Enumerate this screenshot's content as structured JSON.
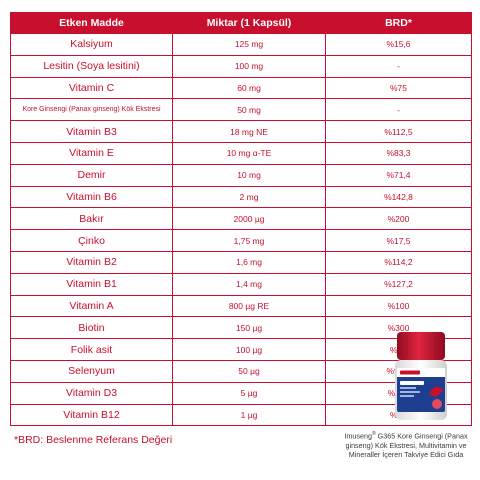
{
  "table": {
    "headers": [
      "Etken Madde",
      "Miktar (1 Kapsül)",
      "BRD*"
    ],
    "rows": [
      {
        "name": "Kalsiyum",
        "amount": "125 mg",
        "brd": "%15,6"
      },
      {
        "name": "Lesitin (Soya lesitini)",
        "amount": "100 mg",
        "brd": "-"
      },
      {
        "name": "Vitamin C",
        "amount": "60 mg",
        "brd": "%75"
      },
      {
        "name": "Kore Ginsengi (Panax ginseng) Kök Ekstresi",
        "amount": "50 mg",
        "brd": "-"
      },
      {
        "name": "Vitamin B3",
        "amount": "18 mg NE",
        "brd": "%112,5"
      },
      {
        "name": "Vitamin E",
        "amount": "10 mg α-TE",
        "brd": "%83,3"
      },
      {
        "name": "Demir",
        "amount": "10 mg",
        "brd": "%71,4"
      },
      {
        "name": "Vitamin B6",
        "amount": "2 mg",
        "brd": "%142,8"
      },
      {
        "name": "Bakır",
        "amount": "2000 µg",
        "brd": "%200"
      },
      {
        "name": "Çinko",
        "amount": "1,75 mg",
        "brd": "%17,5"
      },
      {
        "name": "Vitamin B2",
        "amount": "1,6 mg",
        "brd": "%114,2"
      },
      {
        "name": "Vitamin B1",
        "amount": "1,4 mg",
        "brd": "%127,2"
      },
      {
        "name": "Vitamin A",
        "amount": "800 µg RE",
        "brd": "%100"
      },
      {
        "name": "Biotin",
        "amount": "150 µg",
        "brd": "%300"
      },
      {
        "name": "Folik asit",
        "amount": "100 µg",
        "brd": "%50"
      },
      {
        "name": "Selenyum",
        "amount": "50 µg",
        "brd": "%90,9"
      },
      {
        "name": "Vitamin D3",
        "amount": "5 µg",
        "brd": "%100"
      },
      {
        "name": "Vitamin B12",
        "amount": "1 µg",
        "brd": "%40"
      }
    ]
  },
  "footnote": "*BRD: Beslenme Referans Değeri",
  "product": {
    "caption_brand": "Imuseng",
    "caption_mark": "®",
    "caption_rest": " G365 Kore Ginsengi (Panax ginseng) Kök Ekstresi, Multivitamin ve Mineraller İçeren Takviye Edici Gıda",
    "colors": {
      "cap": "#c8102e",
      "bottle": "#f4f4f4",
      "label": "#1e3f8f"
    }
  }
}
